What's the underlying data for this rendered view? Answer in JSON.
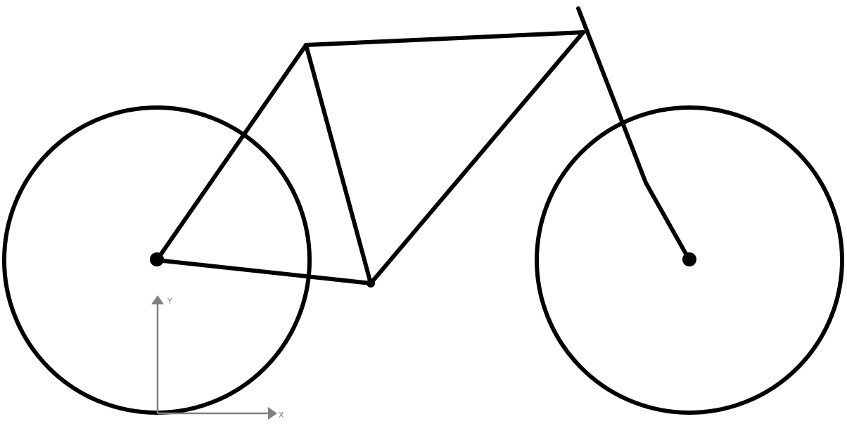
{
  "diagram": {
    "colors": {
      "stroke": "#000000",
      "axis": "#808080",
      "background": "#ffffff"
    },
    "axes": {
      "x_label": "X",
      "y_label": "Y"
    }
  }
}
